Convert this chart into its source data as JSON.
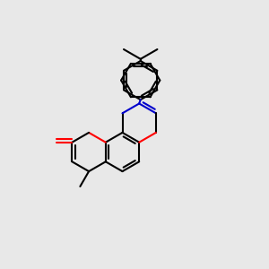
{
  "bg_color": "#e8e8e8",
  "bond_color": "#000000",
  "o_color": "#ff0000",
  "n_color": "#0000cc",
  "lw": 1.5,
  "figsize": [
    3.0,
    3.0
  ],
  "dpi": 100,
  "bl": 0.072
}
